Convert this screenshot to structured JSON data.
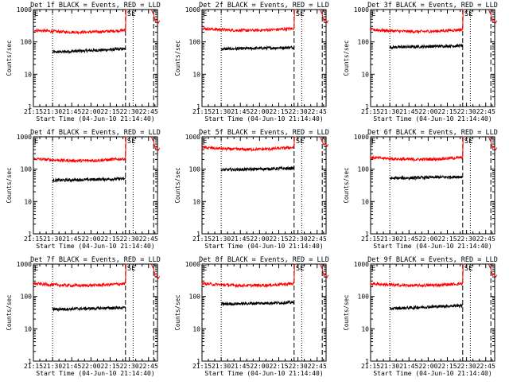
{
  "figure": {
    "shared_xlabel": "Start Time (04-Jun-10 21:14:40)",
    "shared_ylabel": "Counts/sec",
    "x_tick_labels": [
      "21:15",
      "21:30",
      "21:45",
      "22:00",
      "22:15",
      "22:30",
      "22:45"
    ],
    "y_tick_labels": [
      "1",
      "10",
      "100",
      "1000"
    ],
    "marker_letters": [
      "E",
      "SE"
    ],
    "colors": {
      "events": "#000000",
      "lld": "#ff0000",
      "axes": "#000000",
      "background": "#ffffff"
    }
  },
  "chart_data": [
    {
      "type": "line",
      "title": "Det 1f BLACK = Events, RED = LLD",
      "xlabel": "Start Time (04-Jun-10 21:14:40)",
      "ylabel": "Counts/sec",
      "yscale": "log",
      "ylim": [
        1,
        1000
      ],
      "xlim": [
        "21:15",
        "22:52"
      ],
      "vlines_dotted": [
        "21:30",
        "22:33"
      ],
      "vlines_dashed": [
        "22:27",
        "22:49"
      ],
      "series": [
        {
          "name": "Events",
          "color": "#000000",
          "x": [
            "21:30",
            "22:27"
          ],
          "level": 48,
          "trend": 0.1
        },
        {
          "name": "LLD",
          "color": "#ff0000",
          "x": [
            "21:15",
            "22:27"
          ],
          "level": 230,
          "jump_to": 1000,
          "tail": 430
        }
      ]
    },
    {
      "type": "line",
      "title": "Det 2f BLACK = Events, RED = LLD",
      "xlabel": "Start Time (04-Jun-10 21:14:40)",
      "ylabel": "Counts/sec",
      "yscale": "log",
      "ylim": [
        1,
        1000
      ],
      "xlim": [
        "21:15",
        "22:52"
      ],
      "vlines_dotted": [
        "21:30",
        "22:33"
      ],
      "vlines_dashed": [
        "22:27",
        "22:49"
      ],
      "series": [
        {
          "name": "Events",
          "color": "#000000",
          "x": [
            "21:30",
            "22:27"
          ],
          "level": 60,
          "trend": 0.05
        },
        {
          "name": "LLD",
          "color": "#ff0000",
          "x": [
            "21:15",
            "22:27"
          ],
          "level": 260,
          "jump_to": 1000,
          "tail": 440
        }
      ]
    },
    {
      "type": "line",
      "title": "Det 3f BLACK = Events, RED = LLD",
      "xlabel": "Start Time (04-Jun-10 21:14:40)",
      "ylabel": "Counts/sec",
      "yscale": "log",
      "ylim": [
        1,
        1000
      ],
      "xlim": [
        "21:15",
        "22:52"
      ],
      "vlines_dotted": [
        "21:30",
        "22:33"
      ],
      "vlines_dashed": [
        "22:27",
        "22:49"
      ],
      "series": [
        {
          "name": "Events",
          "color": "#000000",
          "x": [
            "21:30",
            "22:27"
          ],
          "level": 68,
          "trend": 0.05
        },
        {
          "name": "LLD",
          "color": "#ff0000",
          "x": [
            "21:15",
            "22:27"
          ],
          "level": 240,
          "jump_to": 1000,
          "tail": 430
        }
      ]
    },
    {
      "type": "line",
      "title": "Det 4f BLACK = Events, RED = LLD",
      "xlabel": "Start Time (04-Jun-10 21:14:40)",
      "ylabel": "Counts/sec",
      "yscale": "log",
      "ylim": [
        1,
        1000
      ],
      "xlim": [
        "21:15",
        "22:52"
      ],
      "vlines_dotted": [
        "21:30",
        "22:33"
      ],
      "vlines_dashed": [
        "22:27",
        "22:49"
      ],
      "series": [
        {
          "name": "Events",
          "color": "#000000",
          "x": [
            "21:30",
            "22:27"
          ],
          "level": 45,
          "trend": 0.05
        },
        {
          "name": "LLD",
          "color": "#ff0000",
          "x": [
            "21:15",
            "22:27"
          ],
          "level": 210,
          "jump_to": 1000,
          "tail": 430
        }
      ]
    },
    {
      "type": "line",
      "title": "Det 5f BLACK = Events, RED = LLD",
      "xlabel": "Start Time (04-Jun-10 21:14:40)",
      "ylabel": "Counts/sec",
      "yscale": "log",
      "ylim": [
        1,
        1000
      ],
      "xlim": [
        "21:15",
        "22:52"
      ],
      "vlines_dotted": [
        "21:30",
        "22:33"
      ],
      "vlines_dashed": [
        "22:27",
        "22:49"
      ],
      "series": [
        {
          "name": "Events",
          "color": "#000000",
          "x": [
            "21:30",
            "22:27"
          ],
          "level": 95,
          "trend": 0.05
        },
        {
          "name": "LLD",
          "color": "#ff0000",
          "x": [
            "21:15",
            "22:27"
          ],
          "level": 470,
          "jump_to": 1000,
          "tail": 560
        }
      ]
    },
    {
      "type": "line",
      "title": "Det 6f BLACK = Events, RED = LLD",
      "xlabel": "Start Time (04-Jun-10 21:14:40)",
      "ylabel": "Counts/sec",
      "yscale": "log",
      "ylim": [
        1,
        1000
      ],
      "xlim": [
        "21:15",
        "22:52"
      ],
      "vlines_dotted": [
        "21:30",
        "22:33"
      ],
      "vlines_dashed": [
        "22:27",
        "22:49"
      ],
      "series": [
        {
          "name": "Events",
          "color": "#000000",
          "x": [
            "21:30",
            "22:27"
          ],
          "level": 52,
          "trend": 0.05
        },
        {
          "name": "LLD",
          "color": "#ff0000",
          "x": [
            "21:15",
            "22:27"
          ],
          "level": 230,
          "jump_to": 1000,
          "tail": 440
        }
      ]
    },
    {
      "type": "line",
      "title": "Det 7f BLACK = Events, RED = LLD",
      "xlabel": "Start Time (04-Jun-10 21:14:40)",
      "ylabel": "Counts/sec",
      "yscale": "log",
      "ylim": [
        1,
        1000
      ],
      "xlim": [
        "21:15",
        "22:52"
      ],
      "vlines_dotted": [
        "21:30",
        "22:33"
      ],
      "vlines_dashed": [
        "22:27",
        "22:49"
      ],
      "series": [
        {
          "name": "Events",
          "color": "#000000",
          "x": [
            "21:30",
            "22:27"
          ],
          "level": 40,
          "trend": 0.05
        },
        {
          "name": "LLD",
          "color": "#ff0000",
          "x": [
            "21:15",
            "22:27"
          ],
          "level": 250,
          "jump_to": 1000,
          "tail": 400
        }
      ]
    },
    {
      "type": "line",
      "title": "Det 8f BLACK = Events, RED = LLD",
      "xlabel": "Start Time (04-Jun-10 21:14:40)",
      "ylabel": "Counts/sec",
      "yscale": "log",
      "ylim": [
        1,
        1000
      ],
      "xlim": [
        "21:15",
        "22:52"
      ],
      "vlines_dotted": [
        "21:30",
        "22:33"
      ],
      "vlines_dashed": [
        "22:27",
        "22:49"
      ],
      "series": [
        {
          "name": "Events",
          "color": "#000000",
          "x": [
            "21:30",
            "22:27"
          ],
          "level": 58,
          "trend": 0.05
        },
        {
          "name": "LLD",
          "color": "#ff0000",
          "x": [
            "21:15",
            "22:27"
          ],
          "level": 250,
          "jump_to": 1000,
          "tail": 430
        }
      ]
    },
    {
      "type": "line",
      "title": "Det 9f BLACK = Events, RED = LLD",
      "xlabel": "Start Time (04-Jun-10 21:14:40)",
      "ylabel": "Counts/sec",
      "yscale": "log",
      "ylim": [
        1,
        1000
      ],
      "xlim": [
        "21:15",
        "22:52"
      ],
      "vlines_dotted": [
        "21:30",
        "22:33"
      ],
      "vlines_dashed": [
        "22:27",
        "22:49"
      ],
      "series": [
        {
          "name": "Events",
          "color": "#000000",
          "x": [
            "21:30",
            "22:27"
          ],
          "level": 42,
          "trend": 0.1
        },
        {
          "name": "LLD",
          "color": "#ff0000",
          "x": [
            "21:15",
            "22:27"
          ],
          "level": 250,
          "jump_to": 1000,
          "tail": 440
        }
      ]
    }
  ]
}
